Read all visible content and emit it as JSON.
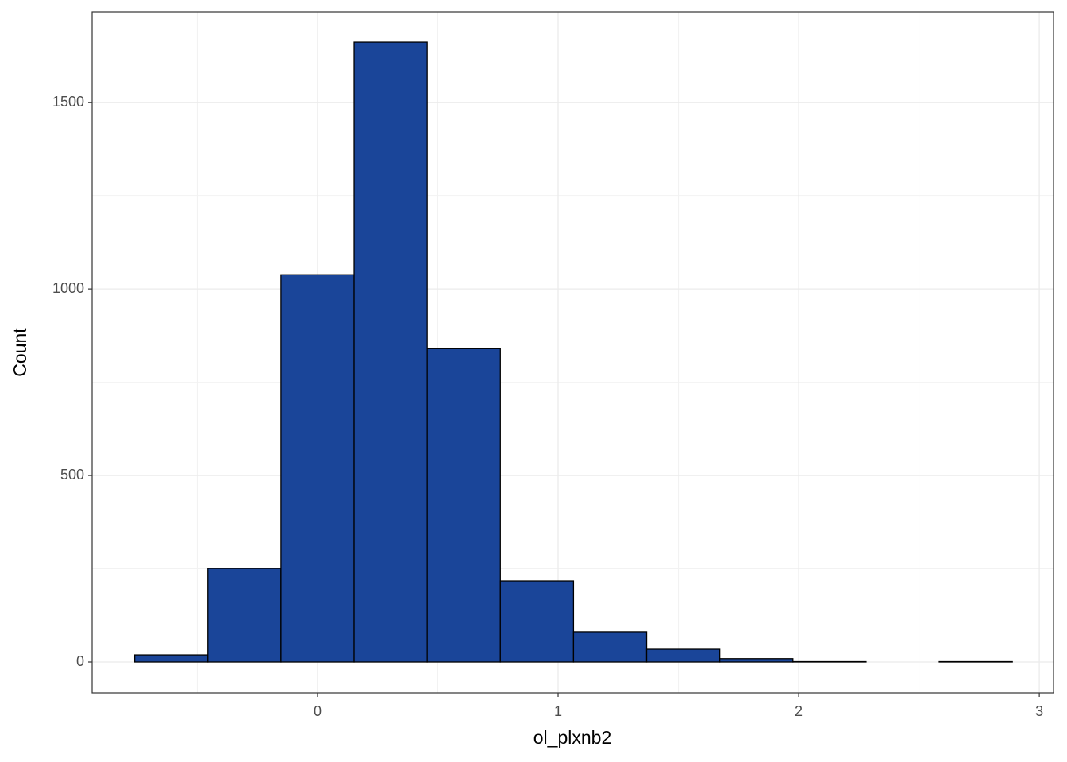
{
  "chart_data": {
    "type": "histogram",
    "x_label": "ol_plxnb2",
    "y_label": "Count",
    "bins": [
      -0.76,
      -0.456,
      -0.152,
      0.152,
      0.456,
      0.76,
      1.064,
      1.368,
      1.672,
      1.976,
      2.28,
      2.584,
      2.888
    ],
    "values": [
      19,
      251,
      1038,
      1662,
      840,
      217,
      81,
      34,
      9,
      1,
      0,
      1
    ],
    "color": "#1a4599",
    "edge_color": "#000000",
    "xlim": [
      -0.937,
      3.059
    ],
    "ylim": [
      -83,
      1743
    ],
    "xticks": [
      0,
      1,
      2,
      3
    ],
    "yticks": [
      0,
      500,
      1000,
      1500
    ],
    "xminorticks": [
      -0.5,
      0.5,
      1.5,
      2.5
    ],
    "yminorticks": [
      250,
      750,
      1250
    ],
    "grid": true
  }
}
